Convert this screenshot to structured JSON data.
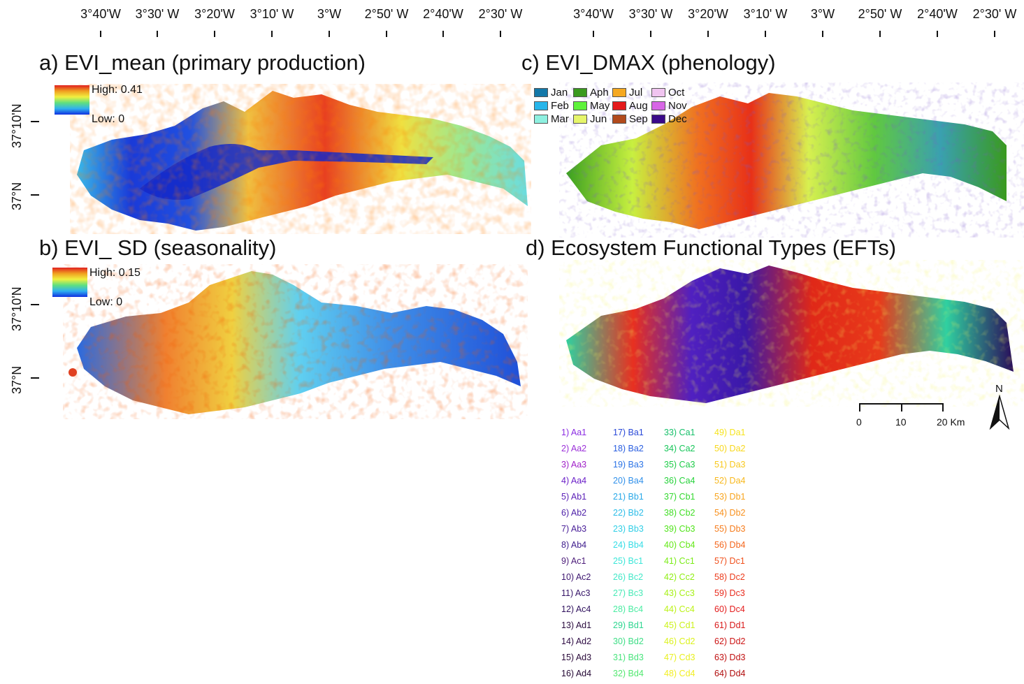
{
  "axes": {
    "lon_labels": [
      "3°40'W",
      "3°30' W",
      "3°20'W",
      "3°10' W",
      "3°W",
      "2°50' W",
      "2°40'W",
      "2°30' W"
    ],
    "lat_labels": [
      "37°10'N",
      "37°N"
    ]
  },
  "panels": {
    "a": {
      "title": "a) EVI_mean (primary production)",
      "legend_high": "High: 0.41",
      "legend_low": "Low: 0"
    },
    "b": {
      "title": "b) EVI_ SD (seasonality)",
      "legend_high": "High: 0.15",
      "legend_low": "Low: 0"
    },
    "c": {
      "title": "c) EVI_DMAX (phenology)",
      "months": [
        {
          "label": "Jan",
          "color": "#1378a8"
        },
        {
          "label": "Feb",
          "color": "#27b5ea"
        },
        {
          "label": "Mar",
          "color": "#8ef0e0"
        },
        {
          "label": "Aph",
          "color": "#3a9a1e"
        },
        {
          "label": "May",
          "color": "#5ef23a"
        },
        {
          "label": "Jun",
          "color": "#e6f56a"
        },
        {
          "label": "Jul",
          "color": "#f5a821"
        },
        {
          "label": "Aug",
          "color": "#e41a1a"
        },
        {
          "label": "Sep",
          "color": "#b24a1c"
        },
        {
          "label": "Oct",
          "color": "#f0c4f0"
        },
        {
          "label": "Nov",
          "color": "#d766e6"
        },
        {
          "label": "Dec",
          "color": "#3a0a8a"
        }
      ]
    },
    "d": {
      "title": "d) Ecosystem Functional Types (EFTs)",
      "scale_labels": [
        "0",
        "10",
        "20 Km"
      ],
      "north_label": "N",
      "eft_columns": [
        [
          "1) Aa1",
          "2) Aa2",
          "3) Aa3",
          "4) Aa4",
          "5) Ab1",
          "6) Ab2",
          "7) Ab3",
          "8) Ab4",
          "9) Ac1",
          "10) Ac2",
          "11) Ac3",
          "12) Ac4",
          "13) Ad1",
          "14) Ad2",
          "15) Ad3",
          "16) Ad4"
        ],
        [
          "17) Ba1",
          "18) Ba2",
          "19) Ba3",
          "20) Ba4",
          "21) Bb1",
          "22) Bb2",
          "23) Bb3",
          "24) Bb4",
          "25) Bc1",
          "26) Bc2",
          "27) Bc3",
          "28) Bc4",
          "29) Bd1",
          "30) Bd2",
          "31) Bd3",
          "32) Bd4"
        ],
        [
          "33) Ca1",
          "34) Ca2",
          "35) Ca3",
          "36) Ca4",
          "37) Cb1",
          "38) Cb2",
          "39) Cb3",
          "40) Cb4",
          "41) Cc1",
          "42) Cc2",
          "43) Cc3",
          "44) Cc4",
          "45) Cd1",
          "46) Cd2",
          "47) Cd3",
          "48) Cd4"
        ],
        [
          "49) Da1",
          "50) Da2",
          "51) Da3",
          "52) Da4",
          "53) Db1",
          "54) Db2",
          "55) Db3",
          "56) Db4",
          "57) Dc1",
          "58) Dc2",
          "59) Dc3",
          "60) Dc4",
          "61) Dd1",
          "62) Dd2",
          "63) Dd3",
          "64) Dd4"
        ]
      ],
      "eft_colors": [
        [
          "#8a2be2",
          "#9b30d9",
          "#a020c8",
          "#6a1fc8",
          "#5b20b8",
          "#4d20a8",
          "#4a2099",
          "#3e1c8c",
          "#4a1a78",
          "#3d1670",
          "#351467",
          "#30125e",
          "#2a0c3e",
          "#2e0c44",
          "#2a0a3a",
          "#240834"
        ],
        [
          "#2848d8",
          "#2a5ee0",
          "#2c74e6",
          "#3090ea",
          "#28a8e8",
          "#2cbde8",
          "#30cfe6",
          "#36dde6",
          "#3ae6d8",
          "#42e8c8",
          "#46eab6",
          "#4aeca2",
          "#2ed690",
          "#3ede86",
          "#48e47c",
          "#52e870"
        ],
        [
          "#16c06a",
          "#18c65a",
          "#1ecc48",
          "#26d23a",
          "#32d82e",
          "#40de24",
          "#52e41c",
          "#64e818",
          "#7aec16",
          "#90ee14",
          "#a6f014",
          "#bcf216",
          "#ccf21a",
          "#dcf21e",
          "#e8f020",
          "#f2ee24"
        ],
        [
          "#f6e41e",
          "#f8d81c",
          "#f8c81c",
          "#f8b81c",
          "#f8a41c",
          "#f8901c",
          "#f67c1c",
          "#f4661c",
          "#f0501c",
          "#ec3c1c",
          "#e82a1c",
          "#e41c1c",
          "#d81818",
          "#cc1414",
          "#c01010",
          "#b00c0c"
        ]
      ]
    }
  }
}
